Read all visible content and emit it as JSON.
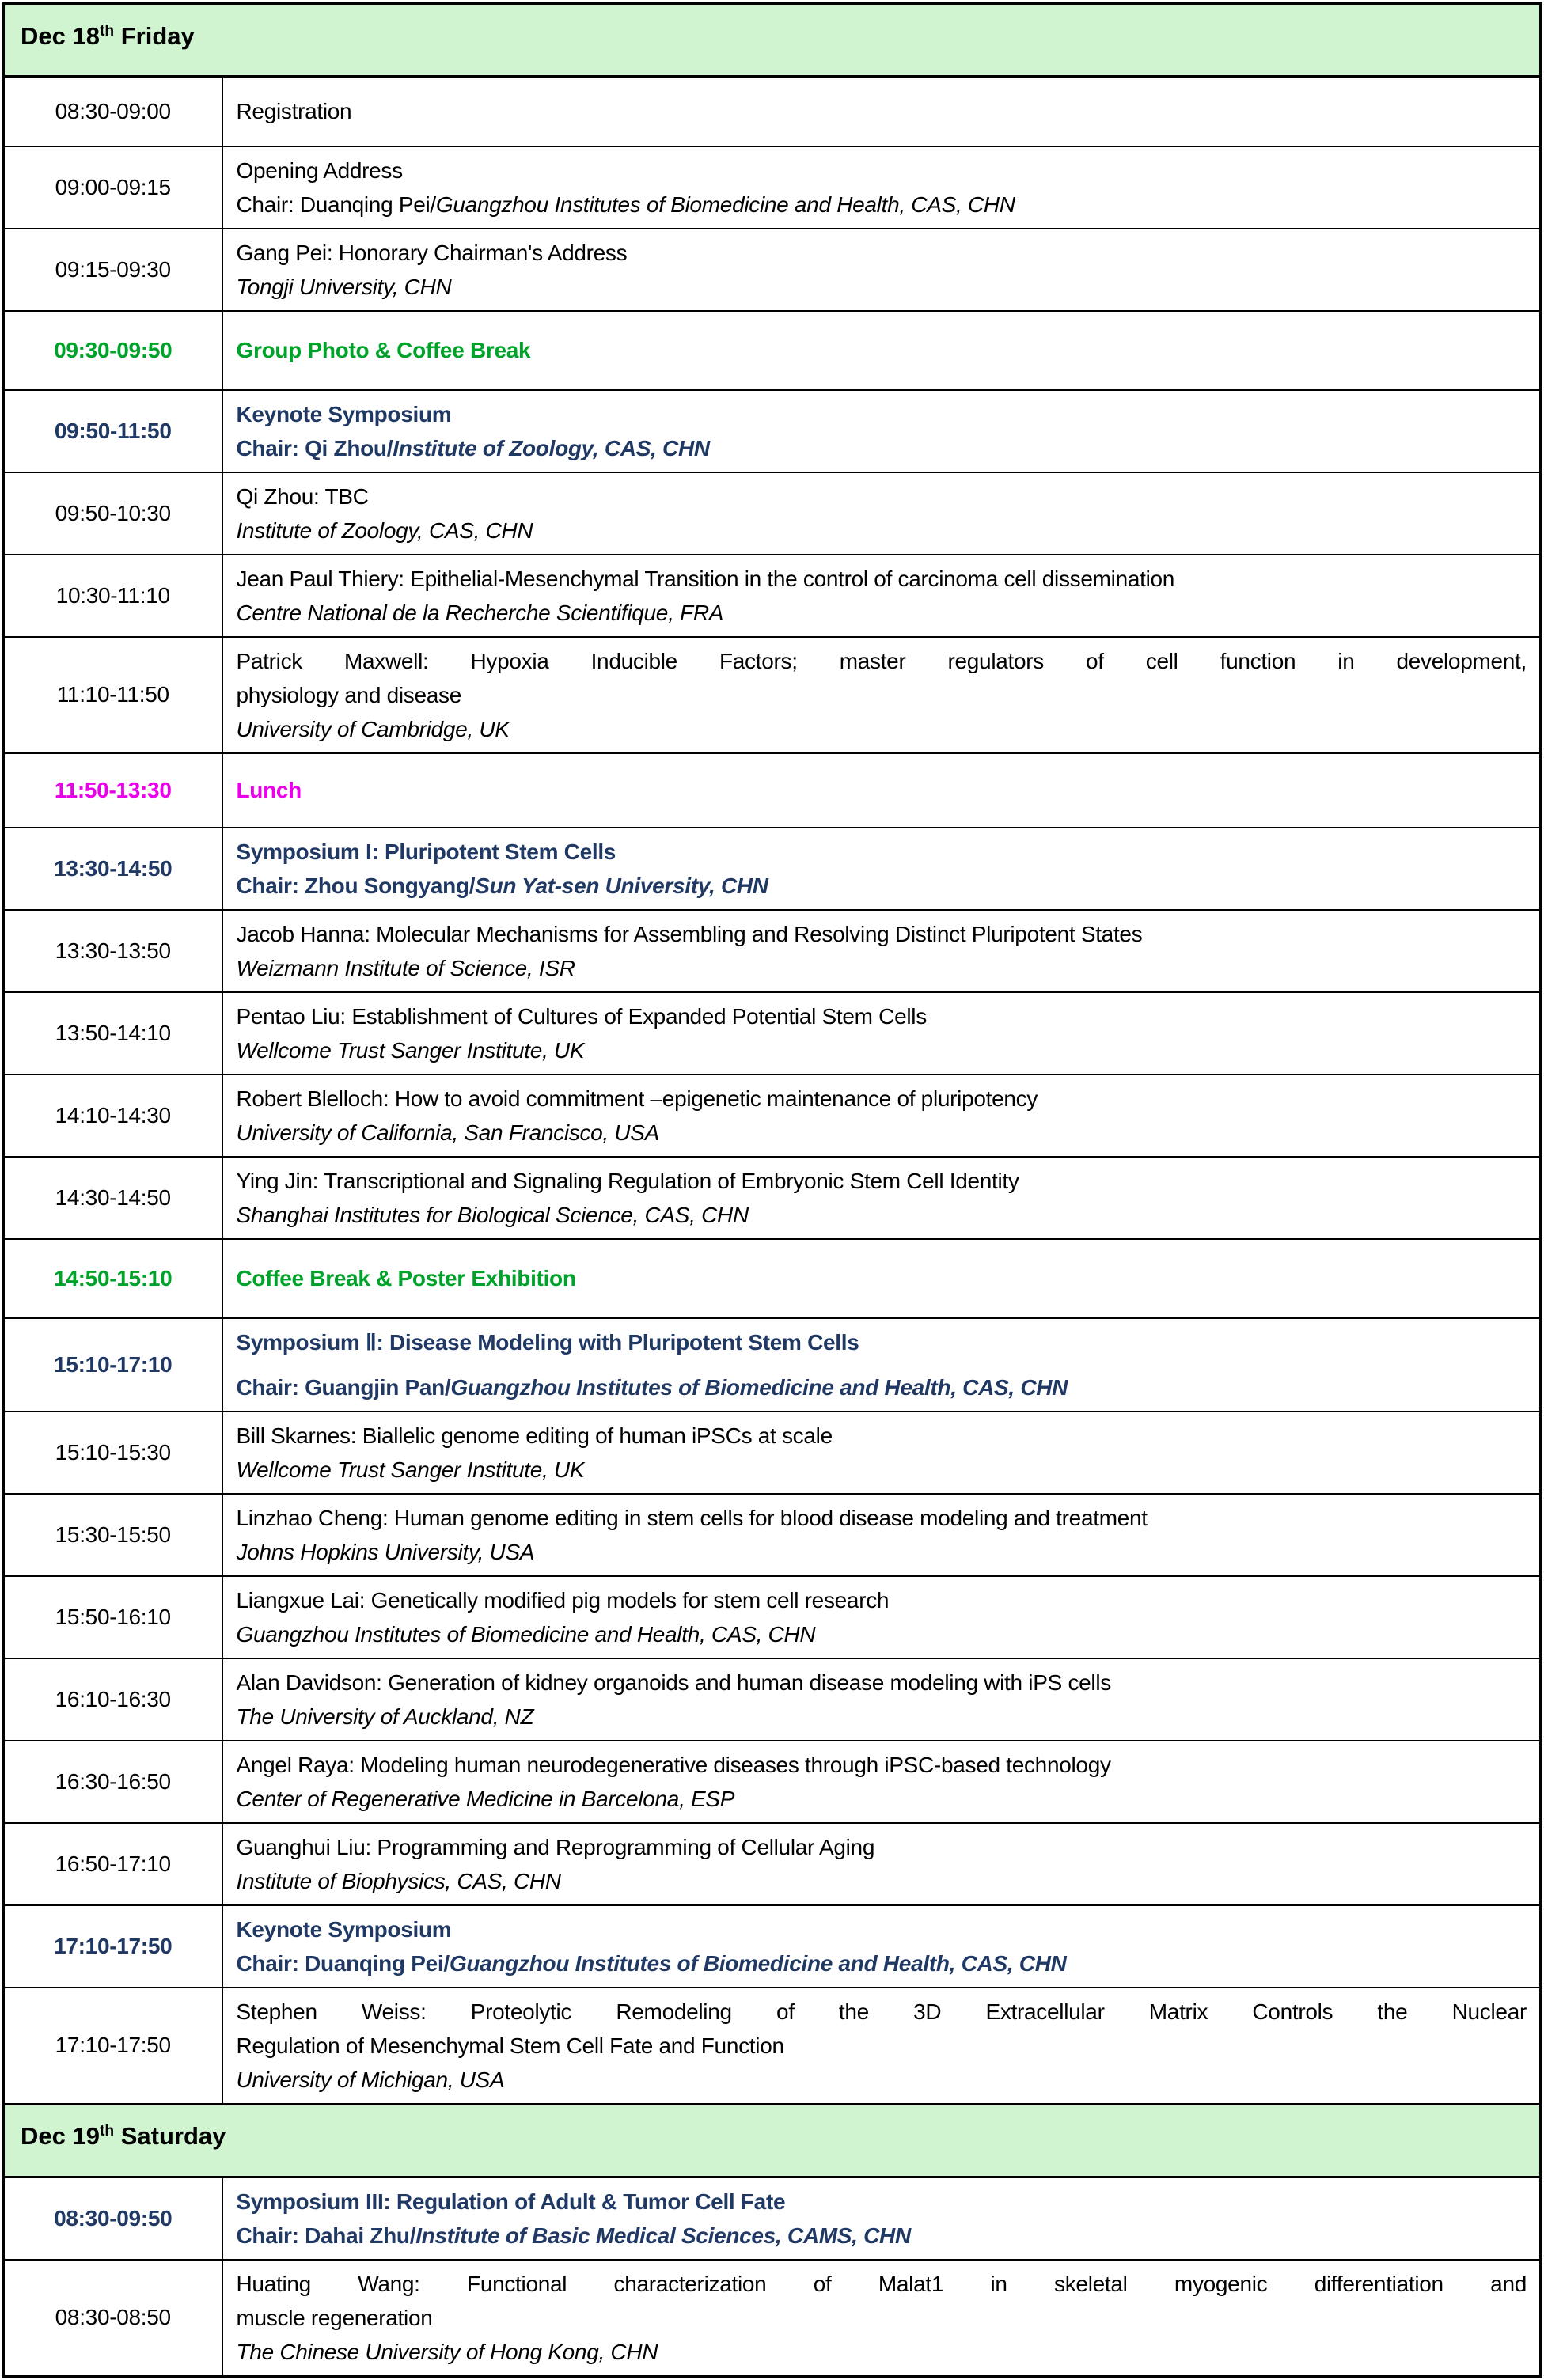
{
  "theme": {
    "header_bg": "#D0F4D0",
    "green": "#00A32A",
    "navy": "#1F3864",
    "magenta": "#EB00EB",
    "border": "#000000",
    "text": "#000000"
  },
  "rows": [
    {
      "kind": "day",
      "lines": [
        {
          "segs": [
            {
              "t": "Dec 18"
            },
            {
              "t": "th",
              "sup": true
            },
            {
              "t": " Friday"
            }
          ]
        }
      ]
    },
    {
      "kind": "session",
      "size": "one",
      "time": "08:30-09:00",
      "lines": [
        {
          "segs": [
            {
              "t": "Registration"
            }
          ]
        }
      ]
    },
    {
      "kind": "session",
      "time": "09:00-09:15",
      "lines": [
        {
          "segs": [
            {
              "t": "Opening Address"
            }
          ]
        },
        {
          "segs": [
            {
              "t": "Chair: Duanqing Pei/"
            },
            {
              "t": "Guangzhou Institutes of Biomedicine and Health, CAS, CHN",
              "i": true
            }
          ]
        }
      ]
    },
    {
      "kind": "session",
      "time": "09:15-09:30",
      "lines": [
        {
          "segs": [
            {
              "t": "Gang Pei: Honorary Chairman's Address"
            }
          ]
        },
        {
          "segs": [
            {
              "t": "Tongji University, CHN",
              "i": true
            }
          ]
        }
      ]
    },
    {
      "kind": "break",
      "time": "09:30-09:50",
      "lines": [
        {
          "segs": [
            {
              "t": "Group Photo & Coffee Break"
            }
          ]
        }
      ]
    },
    {
      "kind": "symp",
      "time": "09:50-11:50",
      "lines": [
        {
          "segs": [
            {
              "t": "Keynote Symposium"
            }
          ]
        },
        {
          "segs": [
            {
              "t": "Chair: Qi Zhou/"
            },
            {
              "t": "Institute of Zoology, CAS, CHN",
              "i": true
            }
          ]
        }
      ]
    },
    {
      "kind": "session",
      "time": "09:50-10:30",
      "lines": [
        {
          "segs": [
            {
              "t": "Qi Zhou: TBC"
            }
          ]
        },
        {
          "segs": [
            {
              "t": "Institute of Zoology, CAS, CHN",
              "i": true
            }
          ]
        }
      ]
    },
    {
      "kind": "session",
      "time": "10:30-11:10",
      "lines": [
        {
          "segs": [
            {
              "t": "Jean Paul Thiery: Epithelial-Mesenchymal Transition in the control of carcinoma cell dissemination"
            }
          ]
        },
        {
          "segs": [
            {
              "t": "Centre National de la Recherche Scientifique, FRA",
              "i": true
            }
          ]
        }
      ]
    },
    {
      "kind": "session",
      "tall": true,
      "time": "11:10-11:50",
      "lines": [
        {
          "just": true,
          "segs": [
            {
              "t": "Patrick Maxwell: Hypoxia Inducible Factors; master regulators of cell function in development,"
            }
          ]
        },
        {
          "segs": [
            {
              "t": "physiology and disease"
            }
          ]
        },
        {
          "segs": [
            {
              "t": "University of Cambridge, UK",
              "i": true
            }
          ]
        }
      ]
    },
    {
      "kind": "lunch",
      "time": "11:50-13:30",
      "lines": [
        {
          "segs": [
            {
              "t": "Lunch"
            }
          ]
        }
      ]
    },
    {
      "kind": "symp",
      "time": "13:30-14:50",
      "lines": [
        {
          "segs": [
            {
              "t": "Symposium I: Pluripotent Stem Cells"
            }
          ]
        },
        {
          "segs": [
            {
              "t": "Chair: Zhou Songyang/"
            },
            {
              "t": "Sun Yat-sen University, CHN",
              "i": true
            }
          ]
        }
      ]
    },
    {
      "kind": "session",
      "time": "13:30-13:50",
      "lines": [
        {
          "segs": [
            {
              "t": "Jacob Hanna: Molecular Mechanisms for Assembling and Resolving Distinct Pluripotent States"
            }
          ]
        },
        {
          "segs": [
            {
              "t": "Weizmann Institute of Science, ISR",
              "i": true
            }
          ]
        }
      ]
    },
    {
      "kind": "session",
      "time": "13:50-14:10",
      "lines": [
        {
          "segs": [
            {
              "t": "Pentao Liu: Establishment of Cultures of Expanded Potential Stem Cells"
            }
          ]
        },
        {
          "segs": [
            {
              "t": "Wellcome Trust Sanger Institute, UK",
              "i": true
            }
          ]
        }
      ]
    },
    {
      "kind": "session",
      "time": "14:10-14:30",
      "lines": [
        {
          "segs": [
            {
              "t": "Robert Blelloch: How to avoid commitment –epigenetic maintenance of pluripotency"
            }
          ]
        },
        {
          "segs": [
            {
              "t": "University of California, San Francisco, USA",
              "i": true
            }
          ]
        }
      ]
    },
    {
      "kind": "session",
      "time": "14:30-14:50",
      "lines": [
        {
          "segs": [
            {
              "t": "Ying Jin: Transcriptional and Signaling Regulation of Embryonic Stem Cell Identity"
            }
          ]
        },
        {
          "segs": [
            {
              "t": "Shanghai Institutes for Biological Science, CAS, CHN",
              "i": true
            }
          ]
        }
      ]
    },
    {
      "kind": "break",
      "time": "14:50-15:10",
      "lines": [
        {
          "segs": [
            {
              "t": "Coffee Break & Poster Exhibition"
            }
          ]
        }
      ]
    },
    {
      "kind": "symp",
      "spaced": true,
      "time": "15:10-17:10",
      "lines": [
        {
          "segs": [
            {
              "t": "Symposium Ⅱ: Disease Modeling with Pluripotent Stem Cells"
            }
          ]
        },
        {
          "segs": [
            {
              "t": "Chair: Guangjin Pan/"
            },
            {
              "t": "Guangzhou Institutes of Biomedicine and Health, CAS, CHN",
              "i": true
            }
          ]
        }
      ]
    },
    {
      "kind": "session",
      "time": "15:10-15:30",
      "lines": [
        {
          "segs": [
            {
              "t": "Bill Skarnes: Biallelic genome editing of human iPSCs at scale"
            }
          ]
        },
        {
          "segs": [
            {
              "t": "Wellcome Trust Sanger Institute, UK",
              "i": true
            }
          ]
        }
      ]
    },
    {
      "kind": "session",
      "time": "15:30-15:50",
      "lines": [
        {
          "segs": [
            {
              "t": "Linzhao Cheng: Human genome editing in stem cells for blood disease modeling and treatment"
            }
          ]
        },
        {
          "segs": [
            {
              "t": "Johns Hopkins University, USA",
              "i": true
            }
          ]
        }
      ]
    },
    {
      "kind": "session",
      "time": "15:50-16:10",
      "lines": [
        {
          "segs": [
            {
              "t": "Liangxue Lai: Genetically modified pig models for stem cell research"
            }
          ]
        },
        {
          "segs": [
            {
              "t": "Guangzhou Institutes of Biomedicine and Health, CAS, CHN",
              "i": true
            }
          ]
        }
      ]
    },
    {
      "kind": "session",
      "time": "16:10-16:30",
      "lines": [
        {
          "segs": [
            {
              "t": "Alan Davidson: Generation of kidney organoids and human disease modeling with iPS cells"
            }
          ]
        },
        {
          "segs": [
            {
              "t": "The University of Auckland, NZ",
              "i": true
            }
          ]
        }
      ]
    },
    {
      "kind": "session",
      "time": "16:30-16:50",
      "lines": [
        {
          "segs": [
            {
              "t": "Angel Raya: Modeling human neurodegenerative diseases through iPSC-based technology"
            }
          ]
        },
        {
          "segs": [
            {
              "t": "Center of Regenerative Medicine in Barcelona, ESP",
              "i": true
            }
          ]
        }
      ]
    },
    {
      "kind": "session",
      "time": "16:50-17:10",
      "lines": [
        {
          "segs": [
            {
              "t": "Guanghui Liu: Programming and Reprogramming of Cellular Aging"
            }
          ]
        },
        {
          "segs": [
            {
              "t": "Institute of Biophysics, CAS, CHN",
              "i": true
            }
          ]
        }
      ]
    },
    {
      "kind": "symp",
      "time": "17:10-17:50",
      "lines": [
        {
          "segs": [
            {
              "t": "Keynote Symposium"
            }
          ]
        },
        {
          "segs": [
            {
              "t": "Chair: Duanqing Pei/"
            },
            {
              "t": "Guangzhou Institutes of Biomedicine and Health, CAS, CHN",
              "i": true
            }
          ]
        }
      ]
    },
    {
      "kind": "session",
      "tall": true,
      "time": "17:10-17:50",
      "lines": [
        {
          "just": true,
          "segs": [
            {
              "t": "Stephen Weiss: Proteolytic Remodeling of the 3D Extracellular Matrix Controls the Nuclear"
            }
          ]
        },
        {
          "segs": [
            {
              "t": "Regulation of Mesenchymal Stem Cell Fate and Function"
            }
          ]
        },
        {
          "segs": [
            {
              "t": "University of Michigan, USA",
              "i": true
            }
          ]
        }
      ]
    },
    {
      "kind": "day",
      "lines": [
        {
          "segs": [
            {
              "t": "Dec 19"
            },
            {
              "t": "th",
              "sup": true
            },
            {
              "t": " Saturday"
            }
          ]
        }
      ]
    },
    {
      "kind": "symp",
      "time": "08:30-09:50",
      "lines": [
        {
          "segs": [
            {
              "t": "Symposium III: Regulation of Adult & Tumor Cell Fate"
            }
          ]
        },
        {
          "segs": [
            {
              "t": "Chair: Dahai Zhu/"
            },
            {
              "t": "Institute of Basic Medical Sciences, CAMS, CHN",
              "i": true
            }
          ]
        }
      ]
    },
    {
      "kind": "session",
      "tall": true,
      "time": "08:30-08:50",
      "lines": [
        {
          "just": true,
          "segs": [
            {
              "t": "Huating Wang: Functional characterization of Malat1 in skeletal myogenic differentiation and"
            }
          ]
        },
        {
          "segs": [
            {
              "t": "muscle regeneration"
            }
          ]
        },
        {
          "segs": [
            {
              "t": "The Chinese University of Hong Kong, CHN",
              "i": true
            }
          ]
        }
      ]
    }
  ]
}
